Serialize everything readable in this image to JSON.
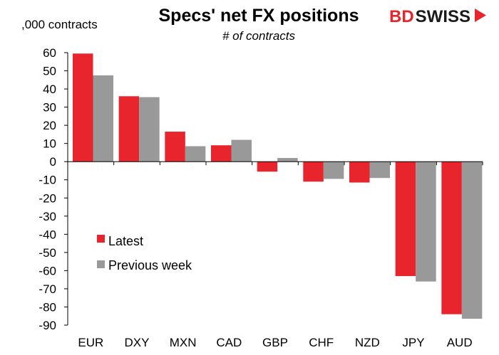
{
  "brand": {
    "part1": "BD",
    "part2": "SWISS",
    "color": "#e8242c"
  },
  "chart_data": {
    "type": "bar",
    "title": "Specs' net FX positions",
    "subtitle": "# of contracts",
    "ylabel": ",000 contracts",
    "xlabel": "",
    "categories": [
      "EUR",
      "DXY",
      "MXN",
      "CAD",
      "GBP",
      "CHF",
      "NZD",
      "JPY",
      "AUD"
    ],
    "series": [
      {
        "name": "Latest",
        "color": "#e8242c",
        "values": [
          59.5,
          36,
          16.5,
          9,
          -5.5,
          -11,
          -11.5,
          -63,
          -84
        ]
      },
      {
        "name": "Previous week",
        "color": "#999999",
        "values": [
          47.5,
          35.5,
          8.5,
          12,
          2,
          -9.5,
          -9,
          -66,
          -86.5
        ]
      }
    ],
    "ylim": [
      -90,
      60
    ],
    "yticks": [
      60,
      50,
      40,
      30,
      20,
      10,
      0,
      -10,
      -20,
      -30,
      -40,
      -50,
      -60,
      -70,
      -80,
      -90
    ],
    "grid": false,
    "legend": "bottom-left"
  }
}
